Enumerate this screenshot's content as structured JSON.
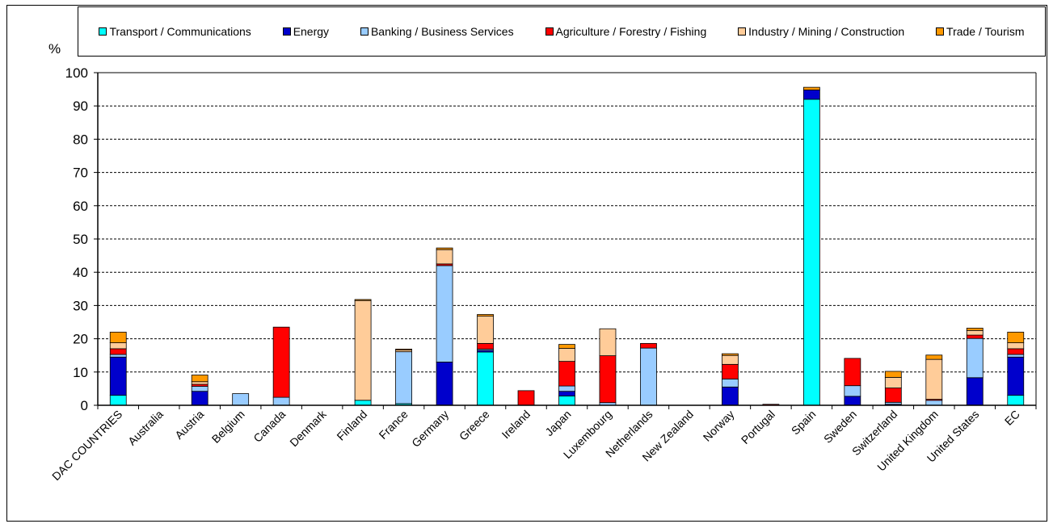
{
  "chart_data": {
    "type": "bar",
    "stacked": true,
    "ylabel": "%",
    "ylim": [
      0,
      100
    ],
    "yticks": [
      0,
      10,
      20,
      30,
      40,
      50,
      60,
      70,
      80,
      90,
      100
    ],
    "grid": true,
    "legend_position": "top",
    "categories": [
      "DAC COUNTRIES",
      "Australia",
      "Austria",
      "Belgium",
      "Canada",
      "Denmark",
      "Finland",
      "France",
      "Germany",
      "Greece",
      "Ireland",
      "Japan",
      "Luxembourg",
      "Netherlands",
      "New Zealand",
      "Norway",
      "Portugal",
      "Spain",
      "Sweden",
      "Switzerland",
      "United Kingdom",
      "United States",
      "EC"
    ],
    "series": [
      {
        "name": "Transport / Communications",
        "color": "#00ffff",
        "values": [
          3,
          0,
          0,
          0,
          0,
          0,
          1.5,
          0.5,
          0,
          16,
          0,
          2.8,
          0,
          0,
          0,
          0,
          0,
          92,
          0,
          0,
          0,
          0,
          3
        ]
      },
      {
        "name": "Energy",
        "color": "#0000cc",
        "values": [
          11.5,
          0,
          4.2,
          0,
          0,
          0,
          0,
          0,
          13,
          0.5,
          0,
          1.4,
          0,
          0,
          0,
          5.5,
          0,
          2.8,
          2.7,
          0.3,
          0,
          8.3,
          11.5
        ]
      },
      {
        "name": "Banking / Business Services",
        "color": "#99ccff",
        "values": [
          0.8,
          0,
          1.5,
          3.5,
          2.4,
          0,
          0,
          15.6,
          29,
          0.4,
          0,
          1.6,
          0.8,
          17.2,
          0,
          2.4,
          0,
          0,
          3.2,
          0.6,
          1.5,
          11.8,
          0.8
        ]
      },
      {
        "name": "Agriculture / Forestry / Fishing",
        "color": "#ff0000",
        "values": [
          1.7,
          0,
          0.6,
          0,
          21.1,
          0,
          0,
          0,
          0.5,
          1.7,
          4.4,
          7.4,
          14.1,
          1.4,
          0,
          4.4,
          0.3,
          0,
          8.2,
          4.3,
          0.3,
          1,
          1.7
        ]
      },
      {
        "name": "Industry / Mining / Construction",
        "color": "#ffcc99",
        "values": [
          1.8,
          0,
          0.8,
          0,
          0,
          0,
          30,
          0.5,
          4.3,
          8.2,
          0,
          3.9,
          8.1,
          0,
          0,
          2.7,
          0,
          0,
          0,
          3.2,
          12,
          1.4,
          1.8
        ]
      },
      {
        "name": "Trade / Tourism",
        "color": "#ff9900",
        "values": [
          3.2,
          0,
          2,
          0,
          0,
          0,
          0.3,
          0.3,
          0.5,
          0.5,
          0,
          1.2,
          0,
          0,
          0,
          0.5,
          0,
          0.8,
          0,
          1.8,
          1.3,
          0.7,
          3.2
        ]
      }
    ]
  }
}
